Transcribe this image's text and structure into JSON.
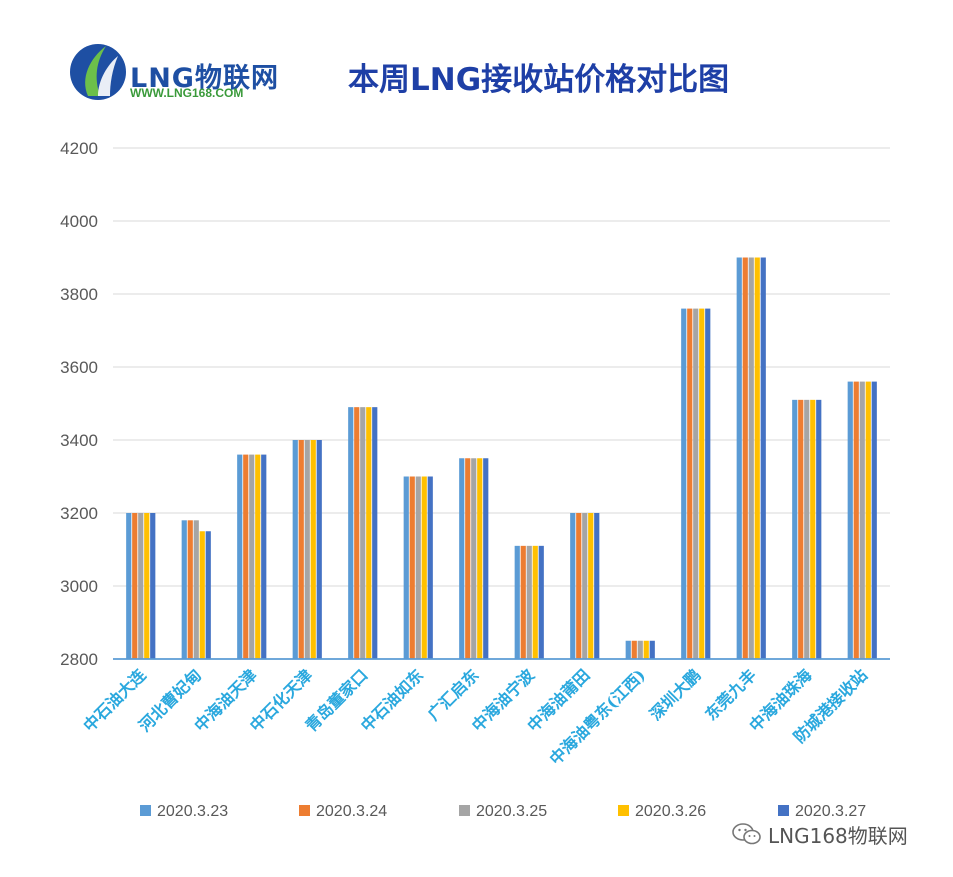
{
  "header": {
    "logo_text": "LNG物联网",
    "logo_url": "WWW.LNG168.COM",
    "title": "本周LNG接收站价格对比图"
  },
  "watermark": {
    "icon": "wechat-icon",
    "text": "LNG168物联网"
  },
  "colors": {
    "title": "#1e3fa6",
    "category_label": "#2aa8de",
    "grid": "#d9d9d9",
    "axis": "#5b9bd5"
  },
  "chart_data": {
    "type": "bar",
    "title": "本周LNG接收站价格对比图",
    "xlabel": "",
    "ylabel": "",
    "ylim": [
      2800,
      4200
    ],
    "yticks": [
      2800,
      3000,
      3200,
      3400,
      3600,
      3800,
      4000,
      4200
    ],
    "grid": true,
    "legend_position": "bottom",
    "categories": [
      "中石油大连",
      "河北曹妃甸",
      "中海油天津",
      "中石化天津",
      "青岛董家口",
      "中石油如东",
      "广汇启东",
      "中海油宁波",
      "中海油莆田",
      "中海油粤东(江西)",
      "深圳大鹏",
      "东莞九丰",
      "中海油珠海",
      "防城港接收站"
    ],
    "series": [
      {
        "name": "2020.3.23",
        "color": "#5b9bd5",
        "values": [
          3200,
          3180,
          3360,
          3400,
          3490,
          3300,
          3350,
          3110,
          3200,
          2850,
          3760,
          3900,
          3510,
          3560
        ]
      },
      {
        "name": "2020.3.24",
        "color": "#ed7d31",
        "values": [
          3200,
          3180,
          3360,
          3400,
          3490,
          3300,
          3350,
          3110,
          3200,
          2850,
          3760,
          3900,
          3510,
          3560
        ]
      },
      {
        "name": "2020.3.25",
        "color": "#a5a5a5",
        "values": [
          3200,
          3180,
          3360,
          3400,
          3490,
          3300,
          3350,
          3110,
          3200,
          2850,
          3760,
          3900,
          3510,
          3560
        ]
      },
      {
        "name": "2020.3.26",
        "color": "#ffc000",
        "values": [
          3200,
          3150,
          3360,
          3400,
          3490,
          3300,
          3350,
          3110,
          3200,
          2850,
          3760,
          3900,
          3510,
          3560
        ]
      },
      {
        "name": "2020.3.27",
        "color": "#4472c4",
        "values": [
          3200,
          3150,
          3360,
          3400,
          3490,
          3300,
          3350,
          3110,
          3200,
          2850,
          3760,
          3900,
          3510,
          3560
        ]
      }
    ]
  }
}
